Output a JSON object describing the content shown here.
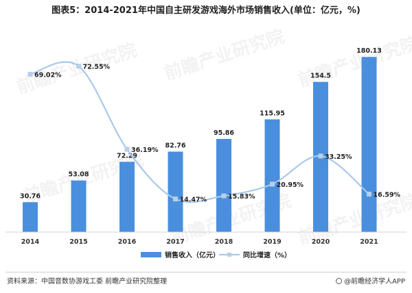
{
  "title": "图表5：2014-2021年中国自主研发游戏海外市场销售收入(单位：亿元，%)",
  "source": "资料来源：中国音数协游戏工委 前瞻产业研究院整理",
  "brand": "@前瞻经济学人APP",
  "watermark": "前瞻产业研究院",
  "colors": {
    "bar": "#4a8fde",
    "line": "#a9c8ec",
    "marker": "#b7cfe9"
  },
  "chart_data": {
    "type": "bar",
    "title": "图表5：2014-2021年中国自主研发游戏海外市场销售收入(单位：亿元，%)",
    "categories": [
      "2014",
      "2015",
      "2016",
      "2017",
      "2018",
      "2019",
      "2020",
      "2021"
    ],
    "series": [
      {
        "name": "销售收入（亿元）",
        "type": "bar",
        "axis": "left",
        "values": [
          30.76,
          53.08,
          72.29,
          82.76,
          95.86,
          115.95,
          154.5,
          180.13
        ],
        "labels": [
          "30.76",
          "53.08",
          "72.29",
          "82.76",
          "95.86",
          "115.95",
          "154.5",
          "180.13"
        ]
      },
      {
        "name": "同比增速（%）",
        "type": "line",
        "smooth": true,
        "axis": "right",
        "values": [
          69.02,
          72.55,
          36.19,
          14.47,
          15.83,
          20.95,
          33.25,
          16.59
        ],
        "labels": [
          "69.02%",
          "72.55%",
          "36.19%",
          "14.47%",
          "15.83%",
          "20.95%",
          "33.25%",
          "16.59%"
        ]
      }
    ],
    "legend": {
      "position": "bottom",
      "entries": [
        "销售收入（亿元）",
        "同比增速（%）"
      ]
    },
    "ylim": [
      0,
      200
    ],
    "y2lim": [
      0,
      85
    ],
    "grid": false
  }
}
